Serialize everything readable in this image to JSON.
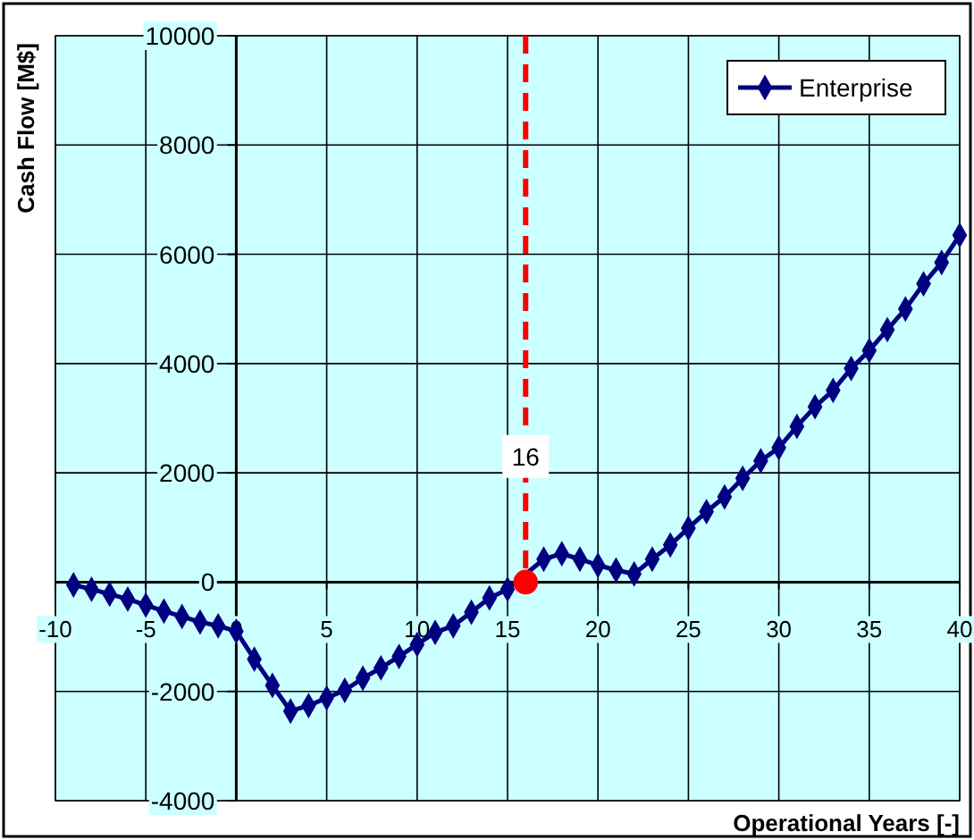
{
  "chart_data": {
    "type": "line",
    "xlabel": "Operational Years [-]",
    "ylabel": "Cash Flow [M$]",
    "xlim": [
      -10,
      40
    ],
    "xticks": [
      -10,
      -5,
      0,
      5,
      10,
      15,
      20,
      25,
      30,
      35,
      40
    ],
    "ylim": [
      -4000,
      10000
    ],
    "yticks": [
      -4000,
      -2000,
      0,
      2000,
      4000,
      6000,
      8000,
      10000
    ],
    "grid": true,
    "legend": "top right",
    "marker": "diamond",
    "line_style": "solid",
    "series": [
      {
        "name": "Enterprise",
        "color": "#000080",
        "x": [
          -9,
          -8,
          -7,
          -6,
          -5,
          -4,
          -3,
          -2,
          -1,
          0,
          1,
          2,
          3,
          4,
          5,
          6,
          7,
          8,
          9,
          10,
          11,
          12,
          13,
          14,
          15,
          16,
          17,
          18,
          19,
          20,
          21,
          22,
          23,
          24,
          25,
          26,
          27,
          28,
          29,
          30,
          31,
          32,
          33,
          34,
          35,
          36,
          37,
          38,
          39,
          40
        ],
        "values": [
          -50,
          -130,
          -220,
          -310,
          -420,
          -530,
          -630,
          -730,
          -800,
          -900,
          -1410,
          -1890,
          -2360,
          -2260,
          -2120,
          -1980,
          -1760,
          -1570,
          -1360,
          -1140,
          -920,
          -800,
          -550,
          -290,
          -130,
          null,
          420,
          520,
          420,
          310,
          220,
          150,
          420,
          680,
          990,
          1290,
          1560,
          1900,
          2220,
          2460,
          2850,
          3210,
          3510,
          3910,
          4240,
          4620,
          5000,
          5460,
          5850,
          6350
        ]
      },
      {
        "type": "scatter",
        "color": "#ff0000",
        "marker": "circle",
        "x": [
          16
        ],
        "values": [
          0
        ]
      }
    ],
    "ref_lines": [
      {
        "axis": "x",
        "value": 16,
        "label": "16",
        "color": "#ff0000",
        "line_style": "dashed"
      }
    ]
  }
}
